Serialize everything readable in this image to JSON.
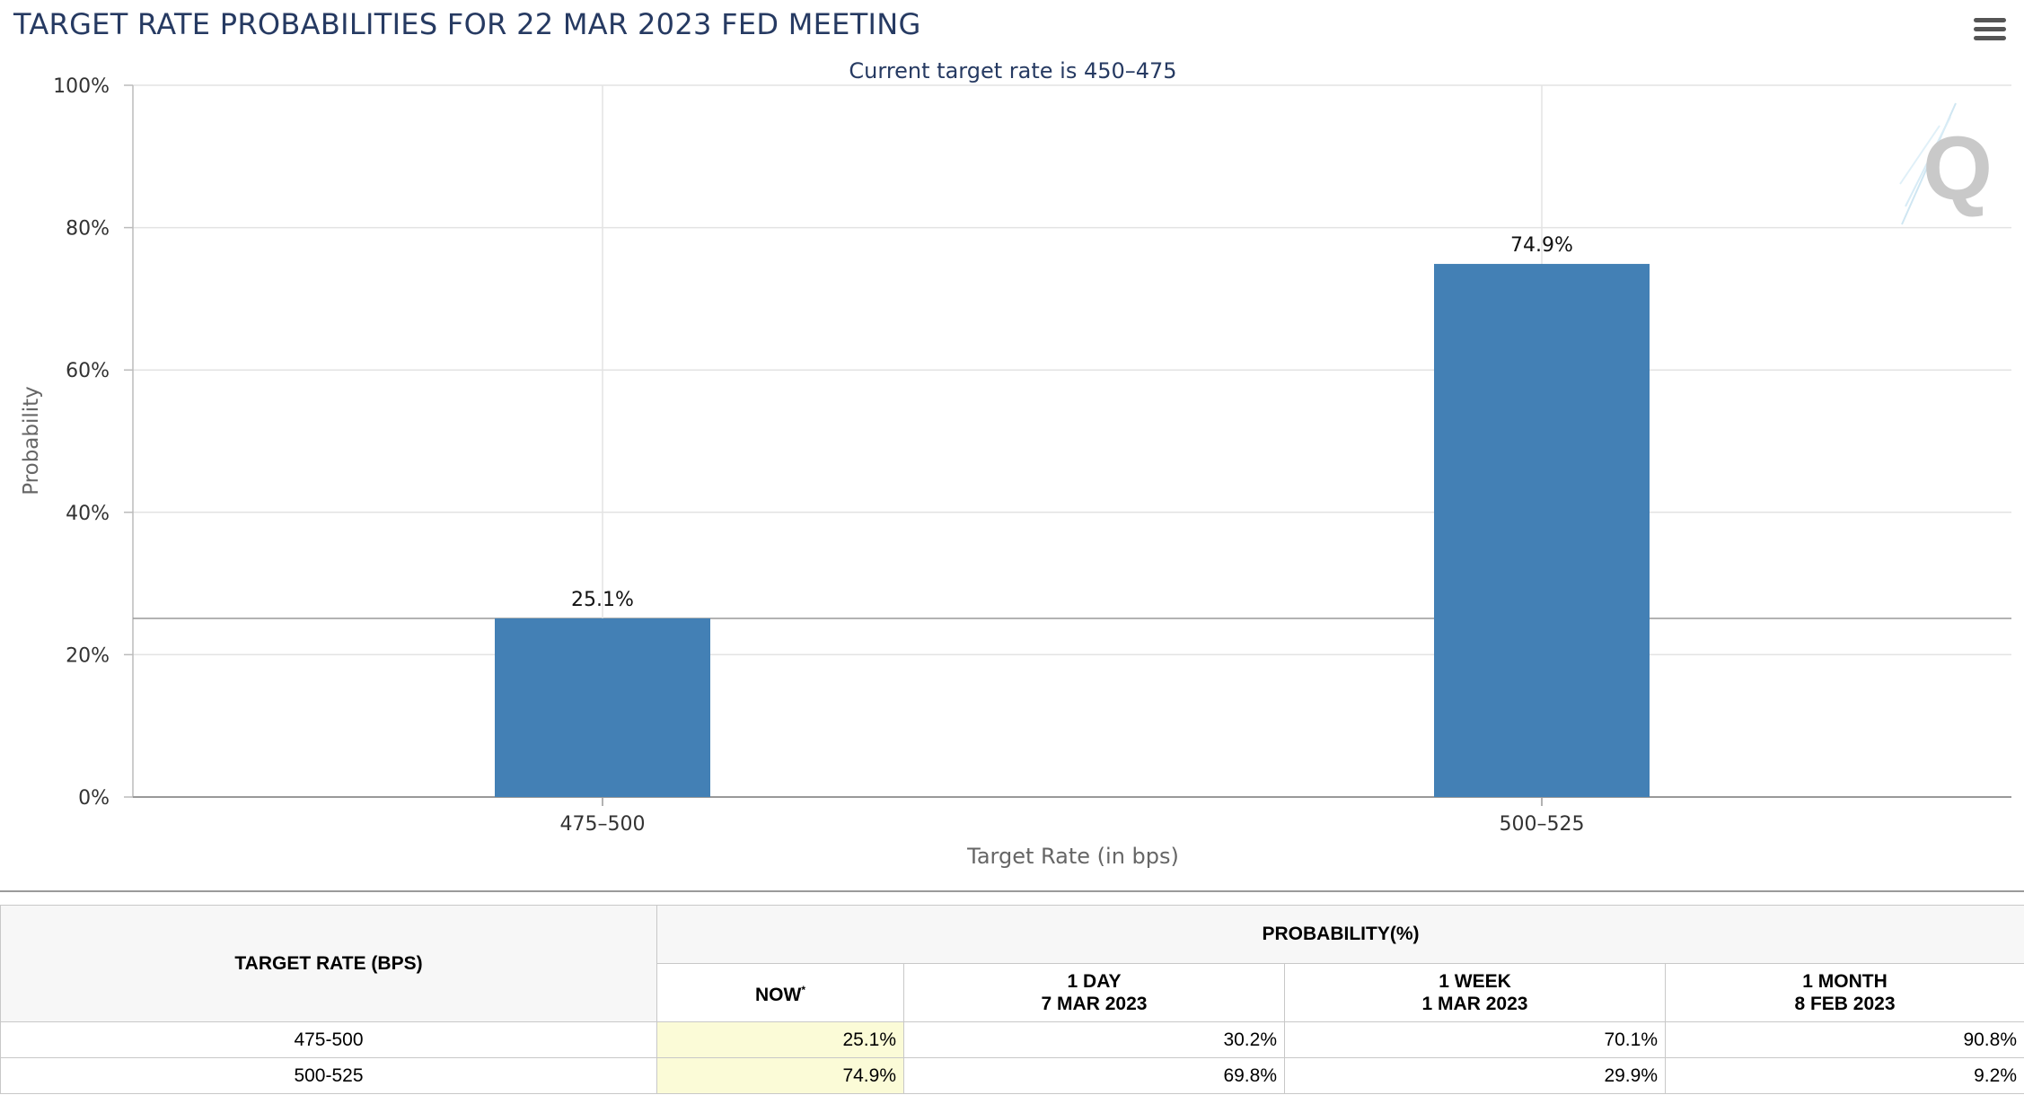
{
  "header": {
    "title": "TARGET RATE PROBABILITIES FOR 22 MAR 2023 FED MEETING",
    "menu_icon": "hamburger-menu-icon"
  },
  "chart_data": {
    "type": "bar",
    "subtitle": "Current target rate is 450–475",
    "categories": [
      "475–500",
      "500–525"
    ],
    "values": [
      25.1,
      74.9
    ],
    "data_labels": [
      "25.1%",
      "74.9%"
    ],
    "ylabel": "Probability",
    "xlabel": "Target Rate (in bps)",
    "ylim": [
      0,
      100
    ],
    "yticks": [
      "0%",
      "20%",
      "40%",
      "60%",
      "80%",
      "100%"
    ],
    "grid": true,
    "bar_color": "#4380b5",
    "watermark": "Q"
  },
  "table": {
    "target_rate_header": "TARGET RATE (BPS)",
    "probability_header": "PROBABILITY(%)",
    "columns": [
      {
        "line1": "NOW",
        "line2": "",
        "marker": "*"
      },
      {
        "line1": "1 DAY",
        "line2": "7 MAR 2023"
      },
      {
        "line1": "1 WEEK",
        "line2": "1 MAR 2023"
      },
      {
        "line1": "1 MONTH",
        "line2": "8 FEB 2023"
      }
    ],
    "rows": [
      {
        "rate": "475-500",
        "now": "25.1%",
        "day": "30.2%",
        "week": "70.1%",
        "month": "90.8%"
      },
      {
        "rate": "500-525",
        "now": "74.9%",
        "day": "69.8%",
        "week": "29.9%",
        "month": "9.2%"
      }
    ],
    "now_highlight_color": "#fbfbd7"
  }
}
